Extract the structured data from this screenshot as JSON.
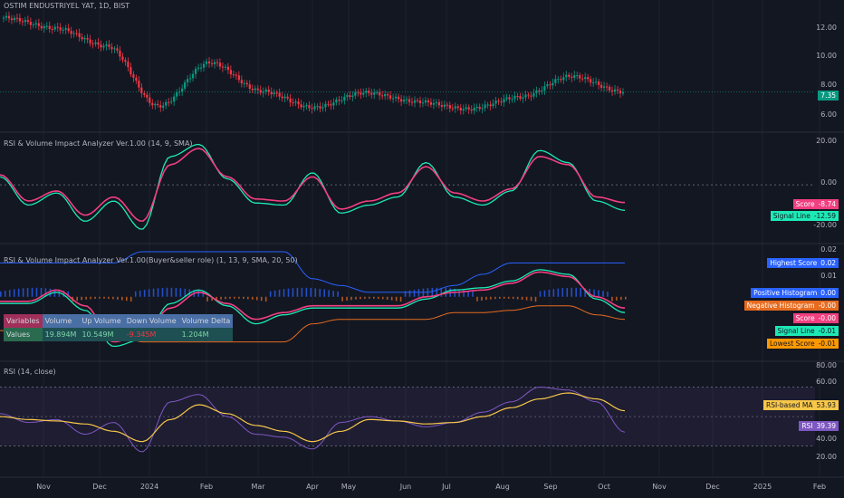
{
  "symbol_title": "OSTIM ENDUSTRIYEL YAT, 1D, BIST",
  "colors": {
    "bg": "#131722",
    "up": "#089981",
    "down": "#f23645",
    "rsi_line": "#7e57c2",
    "rsi_ma": "#f7c74a",
    "score": "#f23f80",
    "signal": "#1de9b6",
    "highest": "#2962ff",
    "lowest": "#e76b1f"
  },
  "price_axis": [
    "12.00",
    "10.00",
    "8.00",
    "6.00"
  ],
  "last_price": "7.35",
  "pane1": {
    "title": "RSI & Volume Impact Analyzer Ver.1.00 (14, 9, SMA)",
    "axis": [
      "20.00",
      "0.00",
      "-20.00"
    ],
    "tags": [
      {
        "label": "Score",
        "value": "-8.74"
      },
      {
        "label": "Signal Line",
        "value": "-12.59"
      }
    ]
  },
  "pane2": {
    "title": "RSI & Volume Impact Analyzer Ver.1.00(Buyer&seller role) (1, 13, 9, SMA, 20, 50)",
    "axis": [
      "0.02",
      "0.01"
    ],
    "tags": [
      {
        "label": "Highest Score",
        "value": "0.02"
      },
      {
        "label": "Positive Histogram",
        "value": "0.00"
      },
      {
        "label": "Negative Histogram",
        "value": "-0.00"
      },
      {
        "label": "Score",
        "value": "-0.00"
      },
      {
        "label": "Signal Line",
        "value": "-0.01"
      },
      {
        "label": "Lowest Score",
        "value": "-0.01"
      }
    ],
    "table": {
      "headers": [
        "Variables",
        "Volume",
        "Up Volume",
        "Down Volume",
        "Volume Delta"
      ],
      "row_label": "Values",
      "row": [
        "19.894M",
        "10.549M",
        "-9.345M",
        "1.204M"
      ]
    }
  },
  "pane3": {
    "title": "RSI (14, close)",
    "axis": [
      "80.00",
      "60.00",
      "40.00",
      "20.00"
    ],
    "tags": [
      {
        "label": "RSI-based MA",
        "value": "53.93"
      },
      {
        "label": "RSI",
        "value": "39.39"
      }
    ]
  },
  "x_axis": [
    "Nov",
    "Dec",
    "2024",
    "Feb",
    "Mar",
    "Apr",
    "May",
    "Jun",
    "Jul",
    "Aug",
    "Sep",
    "Oct",
    "Nov",
    "Dec",
    "2025",
    "Feb"
  ],
  "chart_data": [
    {
      "type": "candlestick",
      "title": "OSTIM ENDUSTRIYEL YAT, 1D, BIST",
      "ylim": [
        5.2,
        13.0
      ],
      "x": [
        "Oct",
        "Nov",
        "Dec",
        "2024",
        "Feb",
        "Mar",
        "Apr",
        "May",
        "Jun",
        "Jul",
        "Aug",
        "Sep",
        "Oct"
      ],
      "close": [
        12.3,
        11.6,
        10.4,
        6.4,
        9.3,
        7.4,
        6.3,
        7.3,
        6.7,
        6.2,
        7.0,
        8.4,
        7.35
      ],
      "last": 7.35
    },
    {
      "type": "line",
      "title": "RSI & Volume Impact Analyzer Ver.1.00 (14, 9, SMA)",
      "ylim": [
        -25,
        22
      ],
      "series": [
        {
          "name": "Score",
          "values": [
            5,
            -8,
            -3,
            -15,
            -6,
            -18,
            10,
            18,
            4,
            -7,
            -8,
            4,
            -12,
            -8,
            -4,
            9,
            -4,
            -8,
            -2,
            14,
            10,
            -6,
            -8.74
          ]
        },
        {
          "name": "Signal Line",
          "values": [
            4,
            -10,
            -4,
            -18,
            -8,
            -22,
            14,
            20,
            3,
            -9,
            -10,
            6,
            -14,
            -10,
            -6,
            11,
            -6,
            -10,
            -3,
            17,
            11,
            -8,
            -12.59
          ]
        }
      ]
    },
    {
      "type": "line",
      "title": "RSI & Volume Impact Analyzer Ver.1.00(Buyer&seller role) (1, 13, 9, SMA, 20, 50)",
      "ylim": [
        -0.025,
        0.02
      ],
      "series": [
        {
          "name": "Highest Score",
          "values": [
            0.015,
            0.015,
            0.015,
            0.015,
            0.015,
            0.02,
            0.02,
            0.02,
            0.02,
            0.02,
            0.02,
            0.008,
            0.005,
            0.002,
            0.002,
            0.002,
            0.005,
            0.01,
            0.015,
            0.015,
            0.015,
            0.015,
            0.015
          ]
        },
        {
          "name": "Lowest Score",
          "values": [
            -0.015,
            -0.015,
            -0.015,
            -0.015,
            -0.015,
            -0.02,
            -0.02,
            -0.02,
            -0.02,
            -0.02,
            -0.02,
            -0.012,
            -0.01,
            -0.01,
            -0.01,
            -0.01,
            -0.007,
            -0.007,
            -0.006,
            -0.004,
            -0.004,
            -0.008,
            -0.01
          ]
        },
        {
          "name": "Score",
          "values": [
            -0.002,
            -0.002,
            0.003,
            -0.004,
            -0.02,
            -0.017,
            -0.005,
            0.002,
            -0.003,
            -0.01,
            -0.007,
            -0.004,
            -0.004,
            -0.004,
            -0.004,
            0.0,
            0.002,
            0.003,
            0.006,
            0.011,
            0.009,
            0.0,
            -0.005
          ]
        },
        {
          "name": "Signal Line",
          "values": [
            -0.003,
            -0.003,
            0.002,
            -0.006,
            -0.022,
            -0.019,
            -0.003,
            0.003,
            -0.004,
            -0.012,
            -0.008,
            -0.005,
            -0.005,
            -0.005,
            -0.005,
            -0.001,
            0.003,
            0.004,
            0.007,
            0.012,
            0.01,
            -0.001,
            -0.007
          ]
        }
      ]
    },
    {
      "type": "line",
      "title": "RSI (14, close)",
      "ylim": [
        15,
        82
      ],
      "series": [
        {
          "name": "RSI",
          "values": [
            52,
            46,
            48,
            38,
            46,
            26,
            60,
            65,
            50,
            38,
            36,
            28,
            46,
            50,
            47,
            43,
            46,
            53,
            60,
            70,
            68,
            60,
            39.39
          ]
        },
        {
          "name": "RSI-based MA",
          "values": [
            50,
            48,
            47,
            45,
            40,
            33,
            48,
            58,
            52,
            44,
            40,
            33,
            40,
            48,
            47,
            45,
            46,
            50,
            56,
            62,
            66,
            62,
            53.93
          ]
        }
      ]
    }
  ]
}
